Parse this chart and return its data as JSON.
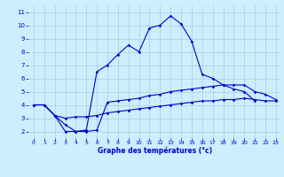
{
  "xlabel": "Graphe des températures (°c)",
  "bg_color": "#cceeff",
  "grid_color": "#aaccdd",
  "line_color": "#0000cc",
  "xlim": [
    -0.5,
    23.5
  ],
  "ylim": [
    1.5,
    11.5
  ],
  "xticks": [
    0,
    1,
    2,
    3,
    4,
    5,
    6,
    7,
    8,
    9,
    10,
    11,
    12,
    13,
    14,
    15,
    16,
    17,
    18,
    19,
    20,
    21,
    22,
    23
  ],
  "yticks": [
    2,
    3,
    4,
    5,
    6,
    7,
    8,
    9,
    10,
    11
  ],
  "series": [
    {
      "x": [
        0,
        1,
        2,
        3,
        4,
        5,
        6,
        7,
        8,
        9,
        10,
        11,
        12,
        13,
        14,
        15,
        16,
        17,
        18,
        19,
        20,
        21
      ],
      "y": [
        4.0,
        4.0,
        3.2,
        2.0,
        2.0,
        2.1,
        6.5,
        7.0,
        7.8,
        8.5,
        8.0,
        9.8,
        10.0,
        10.7,
        10.1,
        8.8,
        6.3,
        6.0,
        5.5,
        5.2,
        5.0,
        4.3
      ]
    },
    {
      "x": [
        0,
        1,
        2,
        3,
        4,
        5,
        6,
        7,
        8,
        9,
        10,
        11,
        12,
        13,
        14,
        15,
        16,
        17,
        18,
        19,
        20,
        21,
        22,
        23
      ],
      "y": [
        4.0,
        4.0,
        3.2,
        2.5,
        2.0,
        2.0,
        2.1,
        4.2,
        4.3,
        4.4,
        4.5,
        4.7,
        4.8,
        5.0,
        5.1,
        5.2,
        5.3,
        5.4,
        5.5,
        5.5,
        5.5,
        5.0,
        4.8,
        4.4
      ]
    },
    {
      "x": [
        0,
        1,
        2,
        3,
        4,
        5,
        6,
        7,
        8,
        9,
        10,
        11,
        12,
        13,
        14,
        15,
        16,
        17,
        18,
        19,
        20,
        21,
        22,
        23
      ],
      "y": [
        4.0,
        4.0,
        3.2,
        3.0,
        3.1,
        3.1,
        3.2,
        3.4,
        3.5,
        3.6,
        3.7,
        3.8,
        3.9,
        4.0,
        4.1,
        4.2,
        4.3,
        4.3,
        4.4,
        4.4,
        4.5,
        4.4,
        4.3,
        4.3
      ]
    }
  ]
}
